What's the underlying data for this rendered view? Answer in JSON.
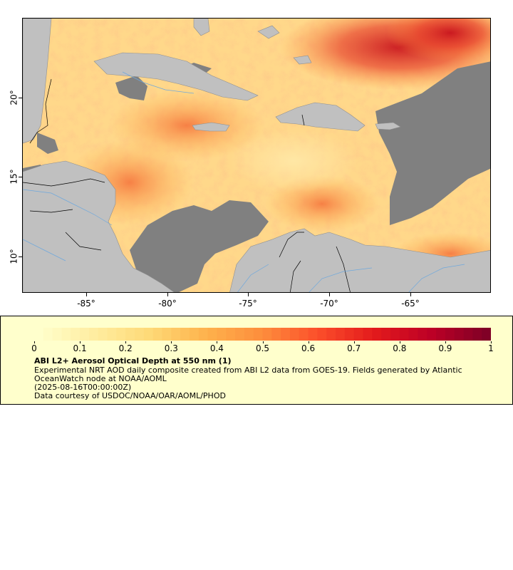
{
  "map": {
    "x_ticks": [
      "-85°",
      "-80°",
      "-75°",
      "-70°",
      "-65°"
    ],
    "y_ticks": [
      "20°",
      "15°",
      "10°"
    ],
    "colors": {
      "land": "#c0c0c0",
      "nodata": "#808080",
      "ocean_base": "#ffd88a",
      "rivers": "#6fa8dc",
      "borders": "#000000"
    }
  },
  "legend": {
    "colorbar_ticks": [
      "0",
      "0.1",
      "0.2",
      "0.3",
      "0.4",
      "0.5",
      "0.6",
      "0.7",
      "0.8",
      "0.9",
      "1"
    ],
    "colorbar_colors": [
      "#ffffcc",
      "#ffeda0",
      "#fed976",
      "#feb24c",
      "#fd8d3c",
      "#fc4e2a",
      "#e31a1c",
      "#bd0026",
      "#800026"
    ],
    "title": "ABI L2+ Aerosol Optical Depth at 550 nm (1)",
    "description": "Experimental NRT AOD daily composite created from ABI L2 data from GOES-19. Fields generated by Atlantic OceanWatch node at NOAA/AOML",
    "date": "(2025-08-16T00:00:00Z)",
    "credit": "Data courtesy of USDOC/NOAA/OAR/AOML/PHOD"
  }
}
